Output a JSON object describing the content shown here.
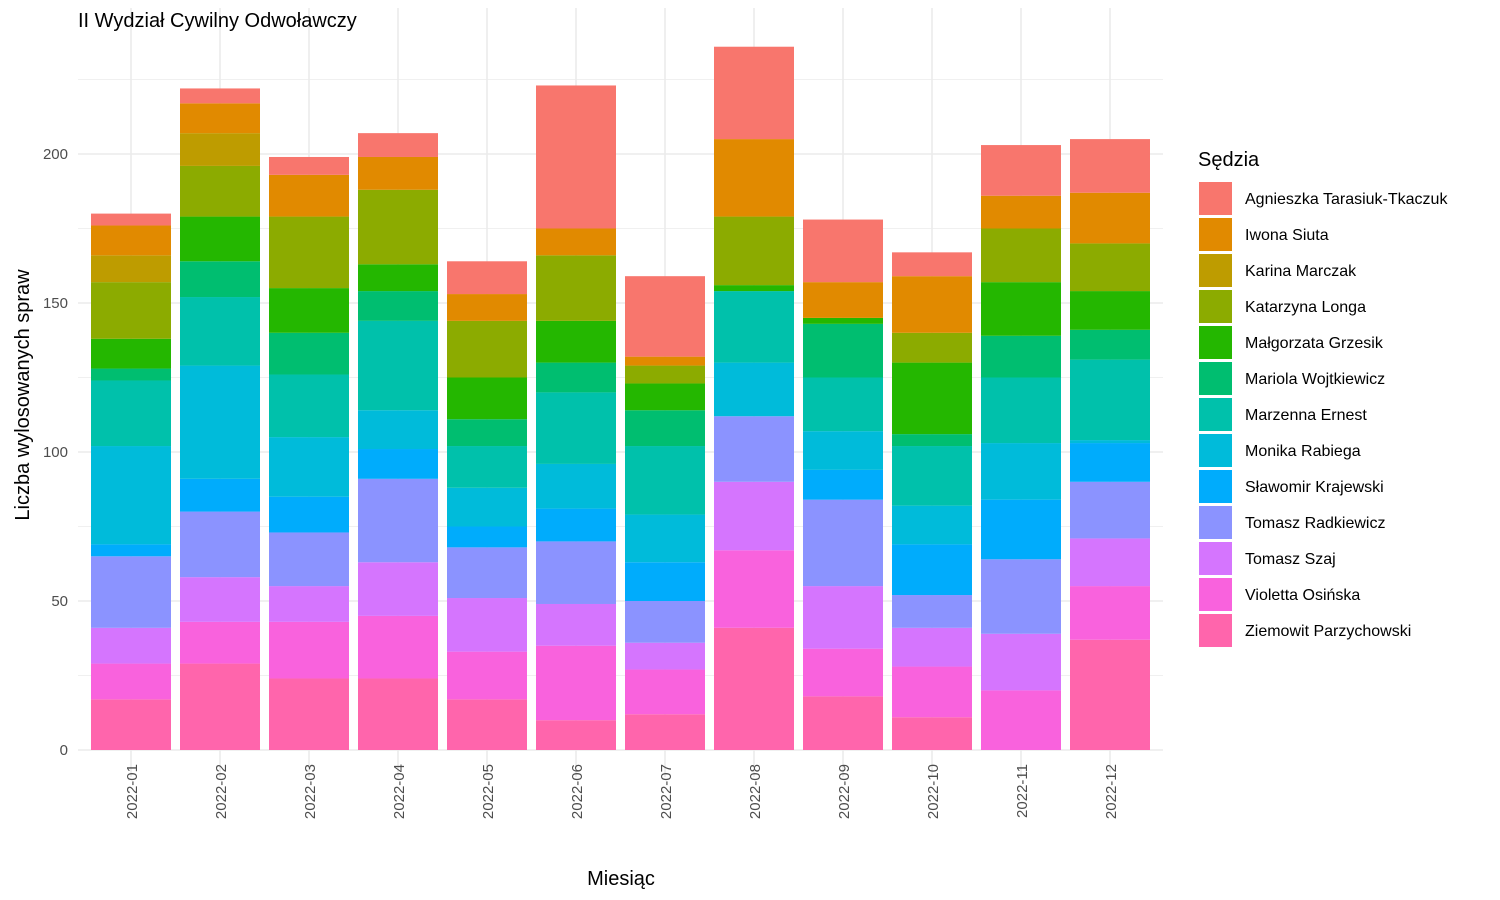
{
  "chart_data": {
    "type": "bar",
    "stacked": true,
    "title": "II Wydział Cywilny Odwoławczy",
    "xlabel": "Miesiąc",
    "ylabel": "Liczba wylosowanych spraw",
    "ylim": [
      0,
      240
    ],
    "yticks": [
      0,
      50,
      100,
      150,
      200
    ],
    "grid": true,
    "legend_title": "Sędzia",
    "legend_position": "right",
    "categories": [
      "2022-01",
      "2022-02",
      "2022-03",
      "2022-04",
      "2022-05",
      "2022-06",
      "2022-07",
      "2022-08",
      "2022-09",
      "2022-10",
      "2022-11",
      "2022-12"
    ],
    "series": [
      {
        "name": "Agnieszka Tarasiuk-Tkaczuk",
        "color": "#F8766D",
        "values": [
          4,
          5,
          6,
          8,
          11,
          48,
          27,
          31,
          21,
          8,
          17,
          18
        ]
      },
      {
        "name": "Iwona Siuta",
        "color": "#E18A00",
        "values": [
          10,
          10,
          14,
          11,
          9,
          9,
          3,
          26,
          12,
          19,
          11,
          17
        ]
      },
      {
        "name": "Karina Marczak",
        "color": "#BE9C00",
        "values": [
          9,
          11,
          0,
          0,
          0,
          0,
          0,
          0,
          0,
          0,
          0,
          0
        ]
      },
      {
        "name": "Katarzyna Longa",
        "color": "#8CAB00",
        "values": [
          19,
          17,
          24,
          25,
          19,
          22,
          6,
          23,
          0,
          10,
          18,
          16
        ]
      },
      {
        "name": "Małgorzata Grzesik",
        "color": "#24B700",
        "values": [
          10,
          15,
          15,
          9,
          14,
          14,
          9,
          2,
          2,
          24,
          18,
          13
        ]
      },
      {
        "name": "Mariola Wojtkiewicz",
        "color": "#00BE70",
        "values": [
          4,
          12,
          14,
          10,
          9,
          10,
          12,
          0,
          18,
          4,
          14,
          10
        ]
      },
      {
        "name": "Marzenna Ernest",
        "color": "#00C1AB",
        "values": [
          22,
          23,
          21,
          30,
          14,
          24,
          23,
          24,
          18,
          20,
          22,
          27
        ]
      },
      {
        "name": "Monika Rabiega",
        "color": "#00BBDA",
        "values": [
          33,
          38,
          20,
          13,
          13,
          15,
          16,
          18,
          13,
          13,
          19,
          1
        ]
      },
      {
        "name": "Sławomir Krajewski",
        "color": "#00ACFC",
        "values": [
          4,
          11,
          12,
          10,
          7,
          11,
          13,
          0,
          10,
          17,
          20,
          13
        ]
      },
      {
        "name": "Tomasz Radkiewicz",
        "color": "#8B93FF",
        "values": [
          24,
          22,
          18,
          28,
          17,
          21,
          14,
          22,
          29,
          11,
          25,
          19
        ]
      },
      {
        "name": "Tomasz Szaj",
        "color": "#D575FE",
        "values": [
          12,
          15,
          12,
          18,
          18,
          14,
          9,
          23,
          21,
          13,
          19,
          16
        ]
      },
      {
        "name": "Violetta Osińska",
        "color": "#F962DD",
        "values": [
          12,
          14,
          19,
          21,
          16,
          25,
          15,
          26,
          16,
          17,
          20,
          18
        ]
      },
      {
        "name": "Ziemowit Parzychowski",
        "color": "#FF65AC",
        "values": [
          17,
          29,
          24,
          24,
          17,
          10,
          12,
          41,
          18,
          11,
          0,
          37
        ]
      }
    ]
  }
}
